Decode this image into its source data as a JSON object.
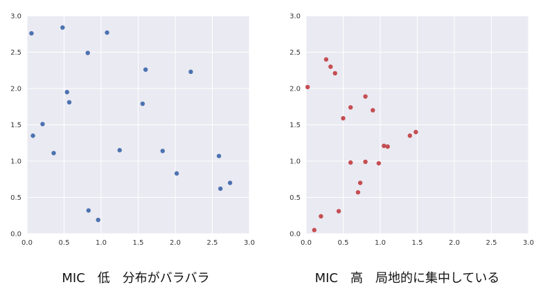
{
  "chart_data": [
    {
      "type": "scatter",
      "caption": "MIC　低　分布がバラバラ",
      "xlim": [
        0,
        3.0
      ],
      "ylim": [
        0,
        3.0
      ],
      "xticks": [
        "0.0",
        "0.5",
        "1.0",
        "1.5",
        "2.0",
        "2.5",
        "3.0"
      ],
      "yticks": [
        "0.0",
        "0.5",
        "1.0",
        "1.5",
        "2.0",
        "2.5",
        "3.0"
      ],
      "grid": true,
      "color": "#4c72b0",
      "background": "#eaeaf2",
      "x": [
        0.06,
        0.08,
        0.21,
        0.36,
        0.48,
        0.54,
        0.57,
        0.82,
        0.83,
        0.96,
        1.08,
        1.25,
        1.56,
        1.6,
        1.83,
        2.02,
        2.21,
        2.59,
        2.61,
        2.74
      ],
      "y": [
        2.76,
        1.35,
        1.51,
        1.11,
        2.84,
        1.95,
        1.81,
        2.49,
        0.32,
        0.19,
        2.77,
        1.15,
        1.79,
        2.26,
        1.14,
        0.83,
        2.23,
        1.07,
        0.62,
        0.7
      ]
    },
    {
      "type": "scatter",
      "caption": "MIC　高　局地的に集中している",
      "xlim": [
        0,
        3.0
      ],
      "ylim": [
        0,
        3.0
      ],
      "xticks": [
        "0.0",
        "0.5",
        "1.0",
        "1.5",
        "2.0",
        "2.5",
        "3.0"
      ],
      "yticks": [
        "0.0",
        "0.5",
        "1.0",
        "1.5",
        "2.0",
        "2.5",
        "3.0"
      ],
      "grid": true,
      "color": "#c44e52",
      "background": "#eaeaf2",
      "x": [
        0.02,
        0.11,
        0.2,
        0.27,
        0.33,
        0.39,
        0.44,
        0.5,
        0.6,
        0.6,
        0.7,
        0.73,
        0.8,
        0.8,
        0.9,
        0.98,
        1.05,
        1.1,
        1.4,
        1.48
      ],
      "y": [
        2.02,
        0.05,
        0.24,
        2.4,
        2.3,
        2.21,
        0.31,
        1.59,
        1.74,
        0.98,
        0.57,
        0.7,
        1.89,
        0.99,
        1.7,
        0.97,
        1.21,
        1.2,
        1.35,
        1.4
      ]
    }
  ]
}
